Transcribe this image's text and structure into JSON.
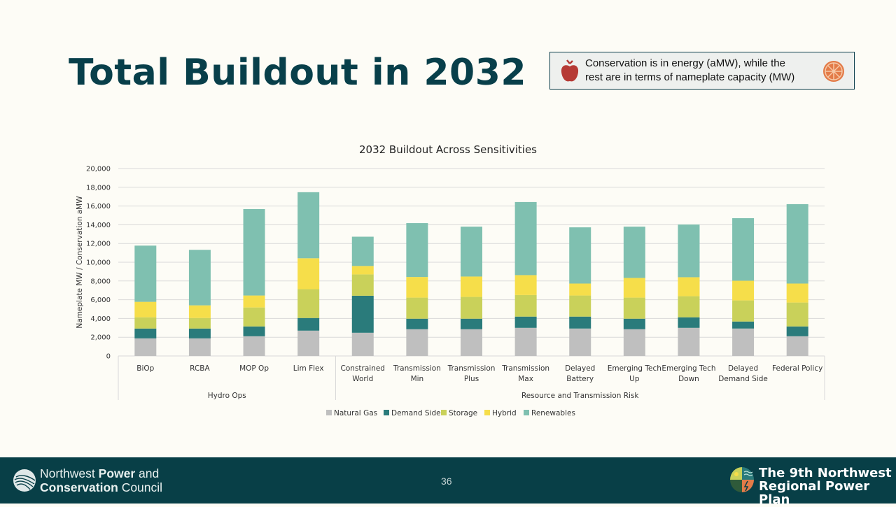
{
  "page": {
    "title": "Total Buildout in 2032",
    "note": {
      "line1": "Conservation is in energy (aMW), while the",
      "line2": "rest are in terms of nameplate capacity (MW)",
      "left_icon": "apple-icon",
      "right_icon": "orange-slice-icon"
    },
    "footer": {
      "org_part1": "Northwest ",
      "org_bold1": "Power",
      "org_part2": " and",
      "org_bold2": "Conservation",
      "org_part3": " Council",
      "page_number": "36",
      "plan_line1": "The 9th Northwest",
      "plan_line2": "Regional Power Plan"
    }
  },
  "chart_data": {
    "type": "bar",
    "stacked": true,
    "title": "2032 Buildout Across Sensitivities",
    "xlabel": "",
    "ylabel": "Nameplate MW / Conservation aMW",
    "ylim": [
      0,
      20000
    ],
    "yticks": [
      0,
      2000,
      4000,
      6000,
      8000,
      10000,
      12000,
      14000,
      16000,
      18000,
      20000
    ],
    "ytick_labels": [
      "0",
      "2,000",
      "4,000",
      "6,000",
      "8,000",
      "10,000",
      "12,000",
      "14,000",
      "16,000",
      "18,000",
      "20,000"
    ],
    "grid": true,
    "legend_position": "bottom",
    "categories": [
      [
        "BiOp"
      ],
      [
        "RCBA"
      ],
      [
        "MOP Op"
      ],
      [
        "Lim Flex"
      ],
      [
        "Constrained",
        "World"
      ],
      [
        "Transmission",
        "Min"
      ],
      [
        "Transmission",
        "Plus"
      ],
      [
        "Transmission",
        "Max"
      ],
      [
        "Delayed",
        "Battery"
      ],
      [
        "Emerging Tech",
        "Up"
      ],
      [
        "Emerging Tech",
        "Down"
      ],
      [
        "Delayed",
        "Demand Side"
      ],
      [
        "Federal Policy"
      ]
    ],
    "groups": [
      {
        "name": "Hydro Ops",
        "count": 4
      },
      {
        "name": "Resource and Transmission Risk",
        "count": 9
      }
    ],
    "series": [
      {
        "name": "Natural Gas",
        "color": "#bfbfbf",
        "values": [
          1875,
          1875,
          2100,
          2700,
          2475,
          2850,
          2850,
          3000,
          2925,
          2850,
          3000,
          2925,
          2100
        ]
      },
      {
        "name": "Demand Side",
        "color": "#2a7b7b",
        "values": [
          1050,
          1050,
          1050,
          1350,
          3950,
          1125,
          1125,
          1200,
          1275,
          1125,
          1125,
          750,
          1050
        ]
      },
      {
        "name": "Storage",
        "color": "#c9d15a",
        "values": [
          1200,
          1125,
          2025,
          3075,
          2275,
          2250,
          2325,
          2300,
          2250,
          2250,
          2250,
          2250,
          2550
        ]
      },
      {
        "name": "Hybrid",
        "color": "#f6de4a",
        "values": [
          1650,
          1350,
          1275,
          3300,
          900,
          2200,
          2175,
          2125,
          1275,
          2100,
          2025,
          2100,
          2025
        ]
      },
      {
        "name": "Renewables",
        "color": "#7fc0b0",
        "values": [
          6000,
          5925,
          9225,
          7050,
          3125,
          5750,
          5325,
          7800,
          6000,
          5475,
          5625,
          6675,
          8475
        ]
      }
    ]
  }
}
